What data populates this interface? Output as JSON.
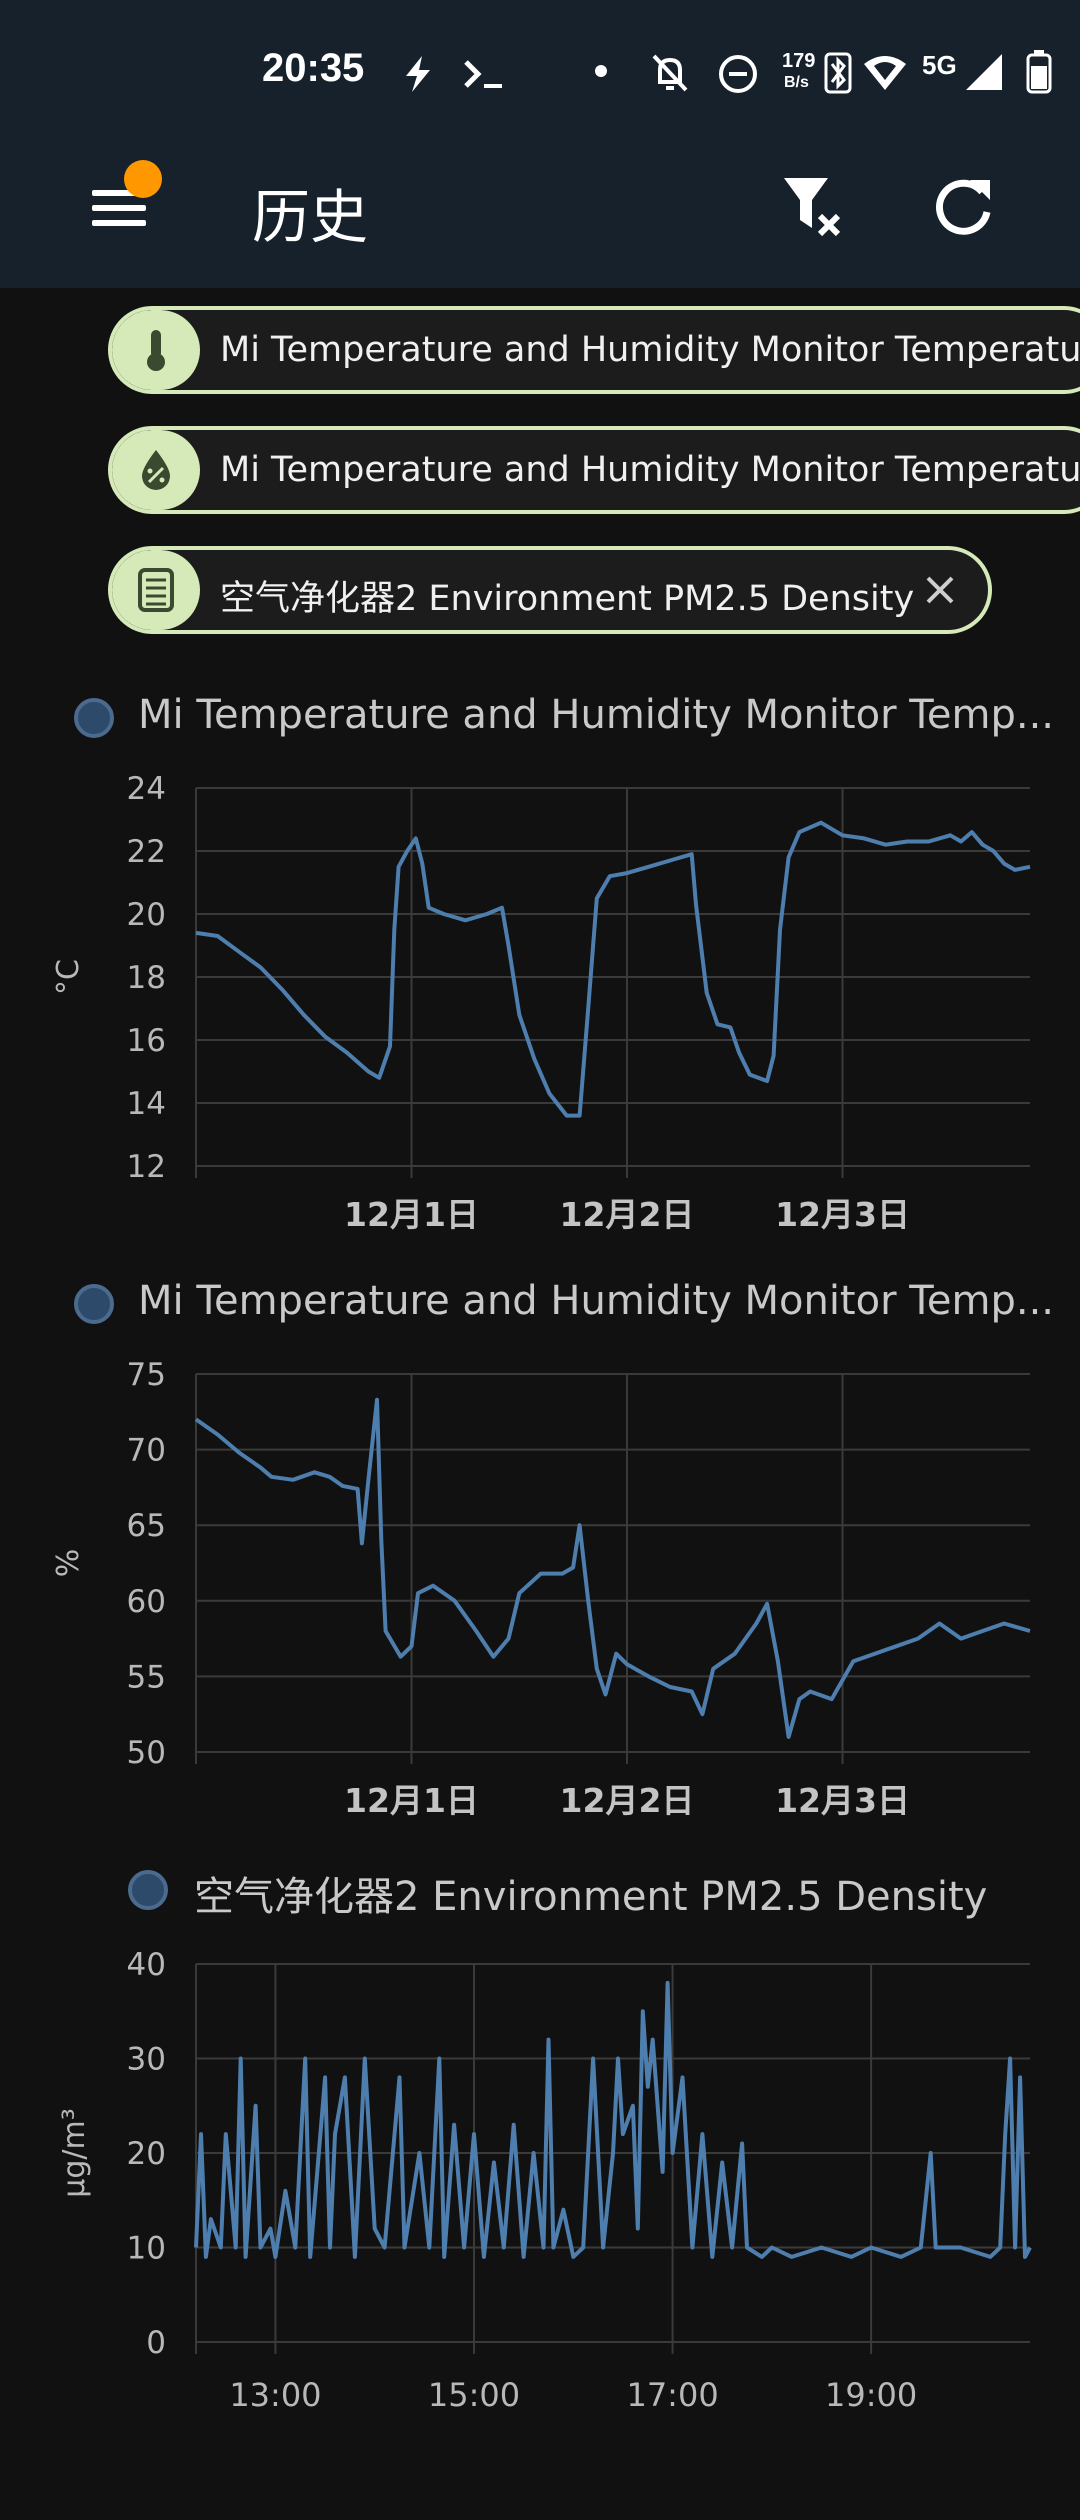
{
  "status_bar": {
    "time": "20:35",
    "net_speed_top": "179",
    "net_speed_bottom": "B/s",
    "network": "5G",
    "icons": [
      "flash-icon",
      "terminal-icon",
      "dot-icon",
      "bell-off-icon",
      "dnd-icon",
      "bluetooth-icon",
      "wifi-icon",
      "signal-icon",
      "battery-icon"
    ]
  },
  "app_bar": {
    "title": "历史",
    "menu_icon": "menu-icon",
    "filter_clear_icon": "filter-clear-icon",
    "refresh_icon": "refresh-icon",
    "badge_color": "#ff9800"
  },
  "chips": [
    {
      "label": "Mi Temperature and Humidity Monitor Temperature",
      "icon": "thermometer-icon"
    },
    {
      "label": "Mi Temperature and Humidity Monitor Temperature",
      "icon": "water-percent-icon"
    },
    {
      "label": "空气净化器2 Environment PM2.5 Density",
      "icon": "air-purifier-icon",
      "close": "close-icon"
    }
  ],
  "colors": {
    "background": "#111111",
    "bar": "#16212c",
    "accent_chip": "#d6e9b8",
    "series": "#4e7eae",
    "grid": "#3a3a3a"
  },
  "chart_data": [
    {
      "type": "line",
      "title": "Mi Temperature and Humidity Monitor Temp...",
      "ylabel": "°C",
      "ylim": [
        12,
        24
      ],
      "yticks": [
        "24",
        "22",
        "20",
        "18",
        "16",
        "14",
        "12"
      ],
      "xticks": [
        "12月1日",
        "12月2日",
        "12月3日"
      ],
      "xrange": [
        0,
        3.87
      ],
      "xtick_positions": [
        1,
        2,
        3
      ],
      "series": [
        {
          "points": [
            [
              0,
              19.4
            ],
            [
              0.1,
              19.3
            ],
            [
              0.2,
              18.8
            ],
            [
              0.3,
              18.3
            ],
            [
              0.4,
              17.6
            ],
            [
              0.5,
              16.8
            ],
            [
              0.6,
              16.1
            ],
            [
              0.7,
              15.6
            ],
            [
              0.8,
              15.0
            ],
            [
              0.85,
              14.8
            ],
            [
              0.9,
              15.8
            ],
            [
              0.92,
              19.5
            ],
            [
              0.94,
              21.5
            ],
            [
              0.98,
              22.0
            ],
            [
              1.02,
              22.4
            ],
            [
              1.05,
              21.6
            ],
            [
              1.08,
              20.2
            ],
            [
              1.15,
              20.0
            ],
            [
              1.25,
              19.8
            ],
            [
              1.35,
              20.0
            ],
            [
              1.42,
              20.2
            ],
            [
              1.45,
              19.0
            ],
            [
              1.5,
              16.8
            ],
            [
              1.57,
              15.4
            ],
            [
              1.64,
              14.3
            ],
            [
              1.72,
              13.6
            ],
            [
              1.78,
              13.6
            ],
            [
              1.82,
              17.0
            ],
            [
              1.86,
              20.5
            ],
            [
              1.92,
              21.2
            ],
            [
              2.0,
              21.3
            ],
            [
              2.1,
              21.5
            ],
            [
              2.2,
              21.7
            ],
            [
              2.3,
              21.9
            ],
            [
              2.32,
              20.3
            ],
            [
              2.37,
              17.5
            ],
            [
              2.42,
              16.5
            ],
            [
              2.48,
              16.4
            ],
            [
              2.52,
              15.6
            ],
            [
              2.57,
              14.9
            ],
            [
              2.65,
              14.7
            ],
            [
              2.68,
              15.5
            ],
            [
              2.71,
              19.5
            ],
            [
              2.75,
              21.8
            ],
            [
              2.8,
              22.6
            ],
            [
              2.9,
              22.9
            ],
            [
              3.0,
              22.5
            ],
            [
              3.1,
              22.4
            ],
            [
              3.2,
              22.2
            ],
            [
              3.3,
              22.3
            ],
            [
              3.4,
              22.3
            ],
            [
              3.5,
              22.5
            ],
            [
              3.55,
              22.3
            ],
            [
              3.6,
              22.6
            ],
            [
              3.65,
              22.2
            ],
            [
              3.7,
              22.0
            ],
            [
              3.75,
              21.6
            ],
            [
              3.8,
              21.4
            ],
            [
              3.87,
              21.5
            ]
          ]
        }
      ]
    },
    {
      "type": "line",
      "title": "Mi Temperature and Humidity Monitor Temp...",
      "ylabel": "%",
      "ylim": [
        50,
        75
      ],
      "yticks": [
        "75",
        "70",
        "65",
        "60",
        "55",
        "50"
      ],
      "xticks": [
        "12月1日",
        "12月2日",
        "12月3日"
      ],
      "xrange": [
        0,
        3.87
      ],
      "xtick_positions": [
        1,
        2,
        3
      ],
      "series": [
        {
          "points": [
            [
              0,
              72
            ],
            [
              0.1,
              71
            ],
            [
              0.2,
              69.8
            ],
            [
              0.3,
              68.8
            ],
            [
              0.35,
              68.2
            ],
            [
              0.45,
              68.0
            ],
            [
              0.55,
              68.5
            ],
            [
              0.62,
              68.2
            ],
            [
              0.68,
              67.6
            ],
            [
              0.75,
              67.4
            ],
            [
              0.77,
              63.8
            ],
            [
              0.8,
              68.0
            ],
            [
              0.84,
              73.3
            ],
            [
              0.86,
              64.0
            ],
            [
              0.88,
              58.0
            ],
            [
              0.95,
              56.3
            ],
            [
              1.0,
              57.0
            ],
            [
              1.03,
              60.5
            ],
            [
              1.1,
              61.0
            ],
            [
              1.2,
              60.0
            ],
            [
              1.3,
              58.0
            ],
            [
              1.38,
              56.3
            ],
            [
              1.45,
              57.5
            ],
            [
              1.5,
              60.5
            ],
            [
              1.6,
              61.8
            ],
            [
              1.7,
              61.8
            ],
            [
              1.75,
              62.2
            ],
            [
              1.78,
              65.0
            ],
            [
              1.82,
              60.0
            ],
            [
              1.86,
              55.5
            ],
            [
              1.9,
              53.8
            ],
            [
              1.95,
              56.5
            ],
            [
              2.0,
              55.8
            ],
            [
              2.1,
              55.0
            ],
            [
              2.2,
              54.3
            ],
            [
              2.3,
              54.0
            ],
            [
              2.35,
              52.5
            ],
            [
              2.4,
              55.5
            ],
            [
              2.5,
              56.5
            ],
            [
              2.6,
              58.5
            ],
            [
              2.65,
              59.8
            ],
            [
              2.7,
              56.0
            ],
            [
              2.75,
              51.0
            ],
            [
              2.8,
              53.5
            ],
            [
              2.85,
              54.0
            ],
            [
              2.95,
              53.5
            ],
            [
              3.05,
              56.0
            ],
            [
              3.15,
              56.5
            ],
            [
              3.25,
              57.0
            ],
            [
              3.35,
              57.5
            ],
            [
              3.45,
              58.5
            ],
            [
              3.55,
              57.5
            ],
            [
              3.65,
              58.0
            ],
            [
              3.75,
              58.5
            ],
            [
              3.87,
              58.0
            ]
          ]
        }
      ]
    },
    {
      "type": "line",
      "title": "空气净化器2 Environment PM2.5 Density",
      "ylabel": "μg/m³",
      "ylim": [
        0,
        40
      ],
      "yticks": [
        "40",
        "30",
        "20",
        "10",
        "0"
      ],
      "xticks": [
        "13:00",
        "15:00",
        "17:00",
        "19:00"
      ],
      "xrange": [
        12.2,
        20.6
      ],
      "xtick_positions": [
        13,
        15,
        17,
        19
      ],
      "series": [
        {
          "points": [
            [
              12.2,
              10
            ],
            [
              12.25,
              22
            ],
            [
              12.3,
              9
            ],
            [
              12.35,
              13
            ],
            [
              12.45,
              10
            ],
            [
              12.5,
              22
            ],
            [
              12.6,
              10
            ],
            [
              12.65,
              30
            ],
            [
              12.7,
              9
            ],
            [
              12.8,
              25
            ],
            [
              12.85,
              10
            ],
            [
              12.95,
              12
            ],
            [
              13.0,
              9
            ],
            [
              13.1,
              16
            ],
            [
              13.2,
              10
            ],
            [
              13.3,
              30
            ],
            [
              13.35,
              9
            ],
            [
              13.5,
              28
            ],
            [
              13.55,
              10
            ],
            [
              13.6,
              22
            ],
            [
              13.7,
              28
            ],
            [
              13.8,
              9
            ],
            [
              13.9,
              30
            ],
            [
              14.0,
              12
            ],
            [
              14.1,
              10
            ],
            [
              14.25,
              28
            ],
            [
              14.3,
              10
            ],
            [
              14.45,
              20
            ],
            [
              14.55,
              10
            ],
            [
              14.65,
              30
            ],
            [
              14.7,
              9
            ],
            [
              14.8,
              23
            ],
            [
              14.9,
              10
            ],
            [
              15.0,
              22
            ],
            [
              15.1,
              9
            ],
            [
              15.2,
              19
            ],
            [
              15.3,
              10
            ],
            [
              15.4,
              23
            ],
            [
              15.5,
              9
            ],
            [
              15.6,
              20
            ],
            [
              15.7,
              10
            ],
            [
              15.75,
              32
            ],
            [
              15.8,
              10
            ],
            [
              15.9,
              14
            ],
            [
              16.0,
              9
            ],
            [
              16.1,
              10
            ],
            [
              16.2,
              30
            ],
            [
              16.3,
              10
            ],
            [
              16.4,
              20
            ],
            [
              16.45,
              30
            ],
            [
              16.5,
              22
            ],
            [
              16.6,
              25
            ],
            [
              16.65,
              12
            ],
            [
              16.7,
              35
            ],
            [
              16.75,
              27
            ],
            [
              16.8,
              32
            ],
            [
              16.9,
              18
            ],
            [
              16.95,
              38
            ],
            [
              17.0,
              20
            ],
            [
              17.1,
              28
            ],
            [
              17.2,
              10
            ],
            [
              17.3,
              22
            ],
            [
              17.4,
              9
            ],
            [
              17.5,
              19
            ],
            [
              17.6,
              10
            ],
            [
              17.7,
              21
            ],
            [
              17.75,
              10
            ],
            [
              17.9,
              9
            ],
            [
              18.0,
              10
            ],
            [
              18.2,
              9
            ],
            [
              18.5,
              10
            ],
            [
              18.8,
              9
            ],
            [
              19.0,
              10
            ],
            [
              19.3,
              9
            ],
            [
              19.5,
              10
            ],
            [
              19.6,
              20
            ],
            [
              19.65,
              10
            ],
            [
              19.9,
              10
            ],
            [
              20.2,
              9
            ],
            [
              20.3,
              10
            ],
            [
              20.35,
              22
            ],
            [
              20.4,
              30
            ],
            [
              20.45,
              10
            ],
            [
              20.5,
              28
            ],
            [
              20.55,
              9
            ],
            [
              20.6,
              10
            ]
          ]
        }
      ]
    }
  ]
}
